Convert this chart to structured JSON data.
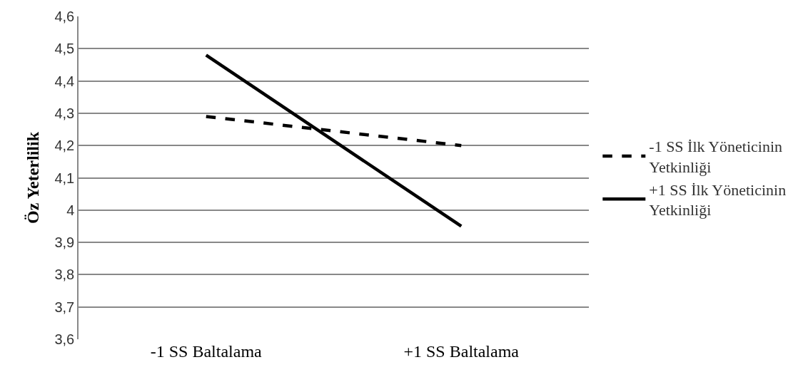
{
  "chart_data": {
    "type": "line",
    "ylabel": "Öz Yeterlilik",
    "categories": [
      "-1 SS Baltalama",
      "+1 SS Baltalama"
    ],
    "series": [
      {
        "name": "-1 SS İlk Yöneticinin Yetkinliği",
        "color": "#000000",
        "line_style": "dashed",
        "values": [
          4.29,
          4.2
        ]
      },
      {
        "name": "+1 SS İlk Yöneticinin Yetkinliği",
        "color": "#000000",
        "line_style": "solid",
        "values": [
          4.48,
          3.95
        ]
      }
    ],
    "ylim": [
      3.6,
      4.6
    ],
    "yticks": [
      {
        "value": 3.6,
        "label": "3,6"
      },
      {
        "value": 3.7,
        "label": "3,7"
      },
      {
        "value": 3.8,
        "label": "3,8"
      },
      {
        "value": 3.9,
        "label": "3,9"
      },
      4,
      {
        "value": 4.1,
        "label": "4,1"
      },
      {
        "value": 4.2,
        "label": "4,2"
      },
      {
        "value": 4.3,
        "label": "4,3"
      },
      {
        "value": 4.4,
        "label": "4,4"
      },
      {
        "value": 4.5,
        "label": "4,5"
      },
      {
        "value": 4.6,
        "label": "4,6"
      }
    ],
    "grid": "y",
    "legend": "right",
    "marker": "none"
  }
}
